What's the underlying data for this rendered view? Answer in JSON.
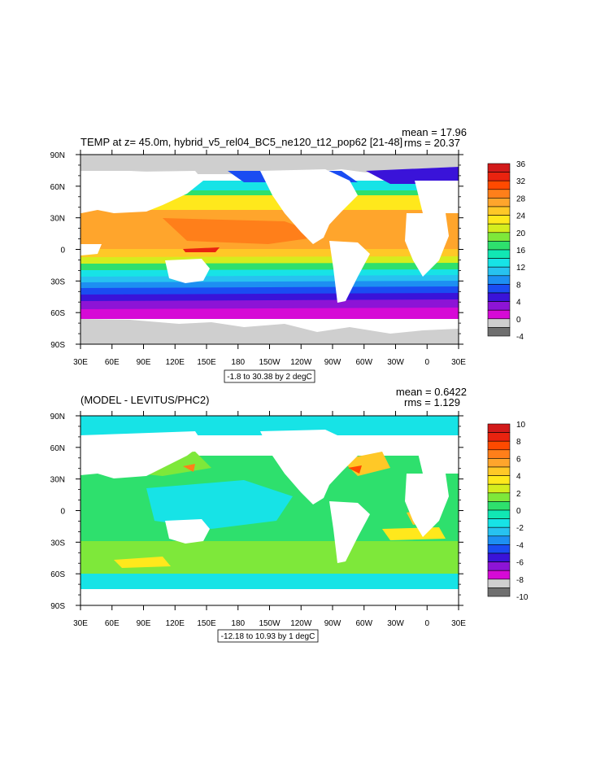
{
  "panels": [
    {
      "title": "TEMP at z=  45.0m, hybrid_v5_rel04_BC5_ne120_t12_pop62 [21-48]",
      "mean": "mean = 17.96",
      "rms": "rms = 20.37",
      "range_note": "-1.8 to 30.38 by 2 degC",
      "colorbar_labels": [
        "36",
        "32",
        "28",
        "24",
        "20",
        "16",
        "12",
        "8",
        "4",
        "0",
        "-4"
      ],
      "colorbar_colors": [
        "#d21a1a",
        "#e9230f",
        "#ff4a00",
        "#ff7f1a",
        "#ffa52c",
        "#ffc827",
        "#ffe81c",
        "#d5ed1e",
        "#7ee83a",
        "#2ee06d",
        "#11e7b4",
        "#17e3e6",
        "#27c2f0",
        "#1d8ff2",
        "#1a4cf2",
        "#3a13d9",
        "#8d14d6",
        "#d60ad6",
        "#cfcfcf",
        "#6f6f6f"
      ]
    },
    {
      "title": "(MODEL - LEVITUS/PHC2)",
      "mean": "mean = 0.6422",
      "rms": "rms = 1.129",
      "range_note": "-12.18 to 10.93 by 1 degC",
      "colorbar_labels": [
        "10",
        "8",
        "6",
        "4",
        "2",
        "0",
        "-2",
        "-4",
        "-6",
        "-8",
        "-10"
      ],
      "colorbar_colors": [
        "#d21a1a",
        "#e9230f",
        "#ff4a00",
        "#ff7f1a",
        "#ffa52c",
        "#ffc827",
        "#ffe81c",
        "#d5ed1e",
        "#7ee83a",
        "#2ee06d",
        "#11e7b4",
        "#17e3e6",
        "#27c2f0",
        "#1d8ff2",
        "#1a4cf2",
        "#3a13d9",
        "#8d14d6",
        "#d60ad6",
        "#cfcfcf",
        "#6f6f6f"
      ]
    }
  ],
  "lat_labels": [
    "90N",
    "60N",
    "30N",
    "0",
    "30S",
    "60S",
    "90S"
  ],
  "lon_labels": [
    "30E",
    "60E",
    "90E",
    "120E",
    "150E",
    "180",
    "150W",
    "120W",
    "90W",
    "60W",
    "30W",
    "0",
    "30E"
  ]
}
